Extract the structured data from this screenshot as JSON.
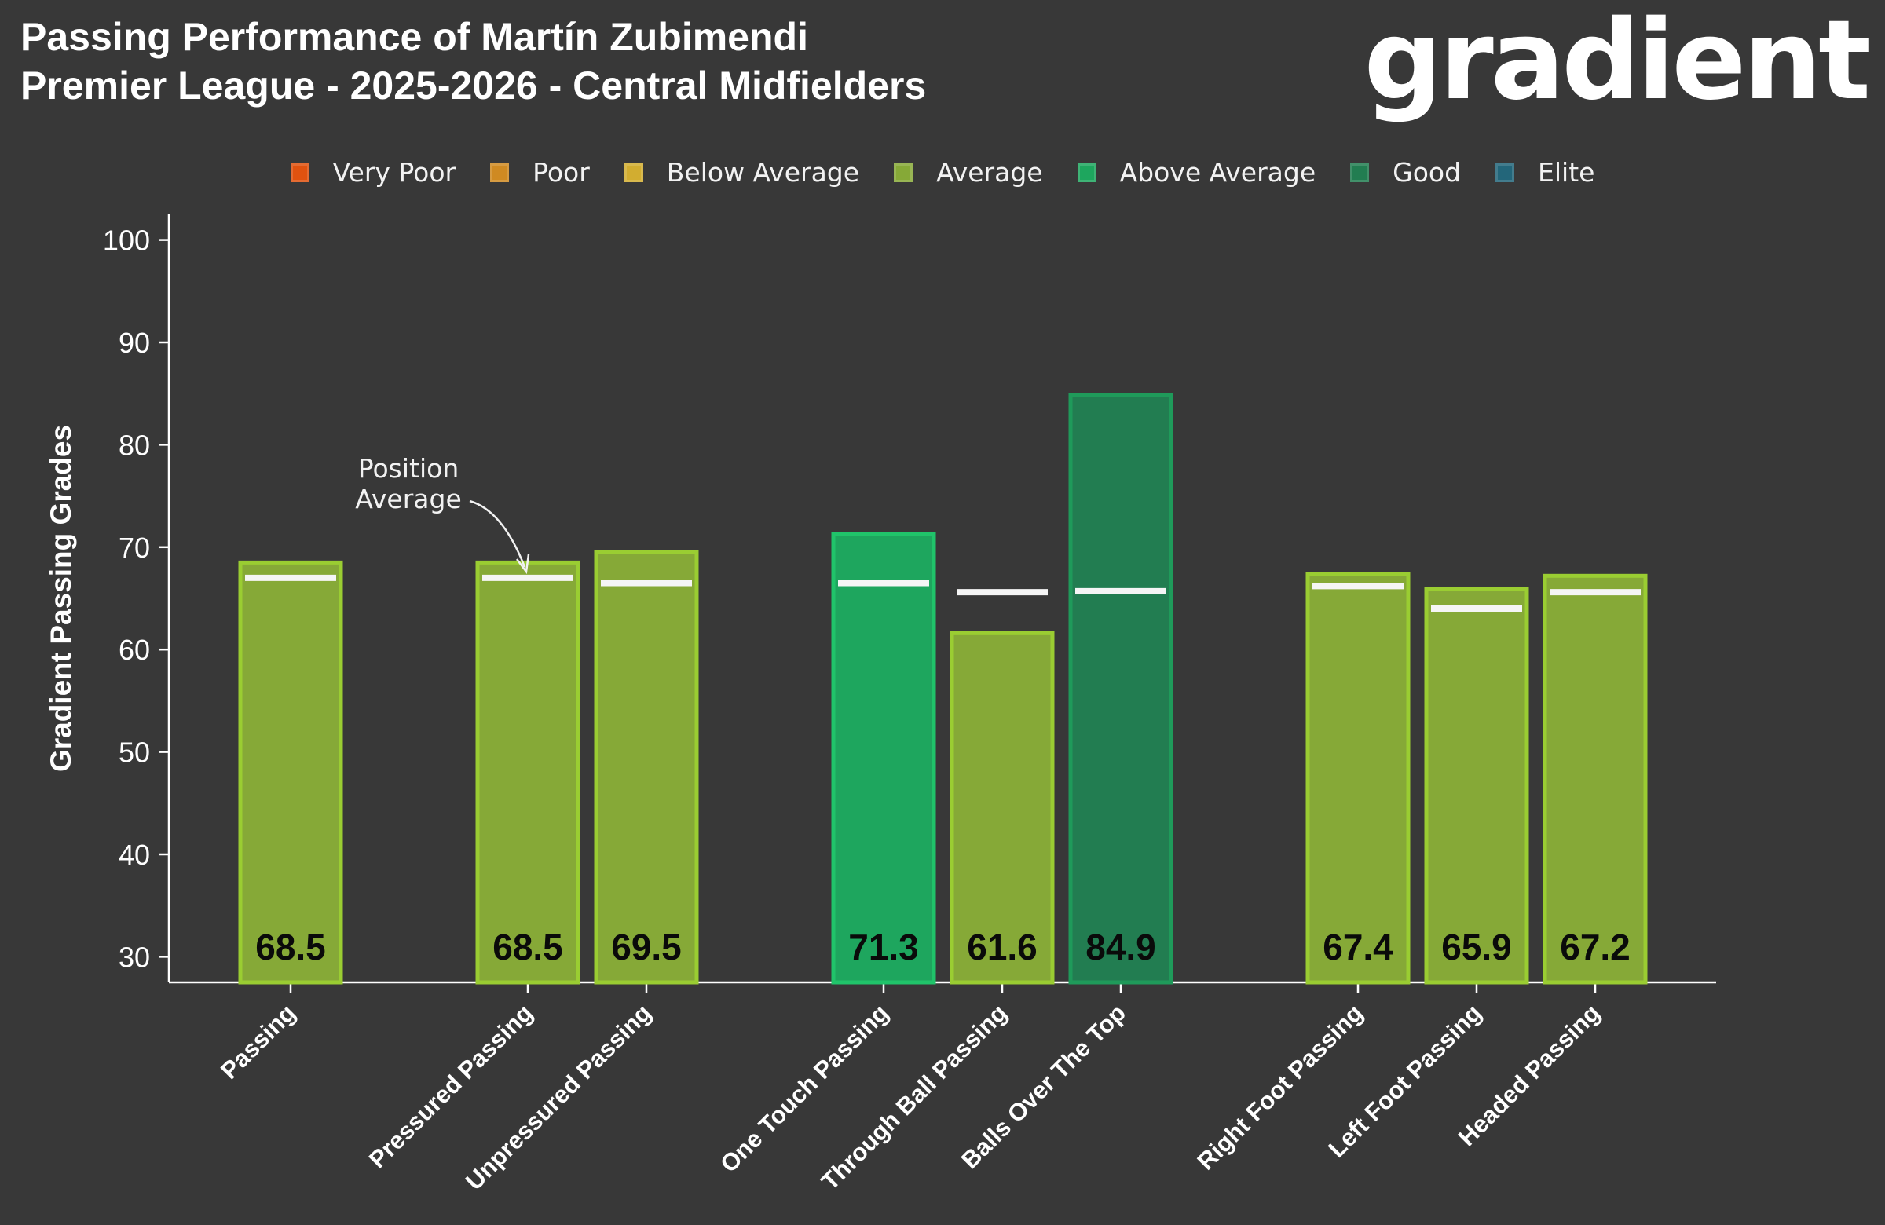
{
  "header": {
    "title_line1": "Passing Performance of Martín Zubimendi",
    "title_line2": "Premier League - 2025-2026 - Central Midfielders",
    "logo_text": "gradient"
  },
  "legend": [
    {
      "label": "Very Poor",
      "color": "#e0520f"
    },
    {
      "label": "Poor",
      "color": "#cf8a22"
    },
    {
      "label": "Below Average",
      "color": "#d2ad30"
    },
    {
      "label": "Average",
      "color": "#86a937"
    },
    {
      "label": "Above Average",
      "color": "#1ea65e"
    },
    {
      "label": "Good",
      "color": "#227d51"
    },
    {
      "label": "Elite",
      "color": "#23667a"
    }
  ],
  "annotation": {
    "line1": "Position",
    "line2": "Average"
  },
  "colors": {
    "background": "#383838",
    "average_bar": "#86a937",
    "average_edge": "#9acd32",
    "above_average_bar": "#1ea65e",
    "above_average_edge": "#20c46a",
    "good_bar": "#227d51",
    "good_edge": "#1f9a5a",
    "position_average_marker": "#f5f5f5"
  },
  "chart_data": {
    "type": "bar",
    "ylabel": "Gradient Passing Grades",
    "ylim": [
      27.5,
      102.5
    ],
    "yticks": [
      30,
      40,
      50,
      60,
      70,
      80,
      90,
      100
    ],
    "categories": [
      "Passing",
      "Pressured Passing",
      "Unpressured Passing",
      "One Touch Passing",
      "Through Ball Passing",
      "Balls Over The Top",
      "Right Foot Passing",
      "Left Foot Passing",
      "Headed Passing"
    ],
    "values": [
      68.5,
      68.5,
      69.5,
      71.3,
      61.6,
      84.9,
      67.4,
      65.9,
      67.2
    ],
    "value_labels": [
      "68.5",
      "68.5",
      "69.5",
      "71.3",
      "61.6",
      "84.9",
      "67.4",
      "65.9",
      "67.2"
    ],
    "position_average": [
      67.0,
      67.0,
      66.5,
      66.5,
      65.6,
      65.7,
      66.2,
      64.0,
      65.6
    ],
    "grade": [
      "Average",
      "Average",
      "Average",
      "Above Average",
      "Average",
      "Good",
      "Average",
      "Average",
      "Average"
    ],
    "groups": [
      [
        0
      ],
      [
        1,
        2
      ],
      [
        3,
        4,
        5
      ],
      [
        6,
        7,
        8
      ]
    ],
    "grid": false,
    "legend_position": "top-center"
  }
}
